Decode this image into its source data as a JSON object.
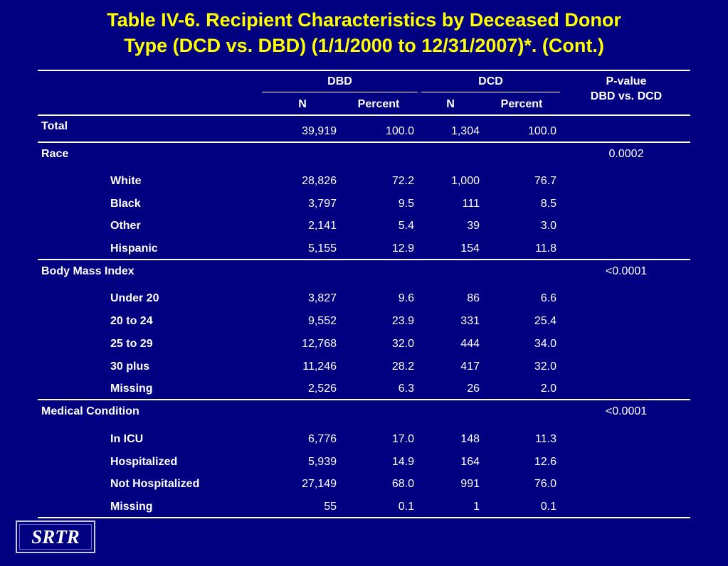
{
  "title": {
    "line1": "Table IV-6. Recipient Characteristics by Deceased Donor",
    "line2": "Type (DCD vs. DBD) (1/1/2000 to 12/31/2007)*. (Cont.)"
  },
  "header": {
    "group_dbd": "DBD",
    "group_dcd": "DCD",
    "col_n": "N",
    "col_percent": "Percent",
    "pvalue_line1": "P-value",
    "pvalue_line2": "DBD vs. DCD"
  },
  "total": {
    "label": "Total",
    "dbd_n": "39,919",
    "dbd_pct": "100.0",
    "dcd_n": "1,304",
    "dcd_pct": "100.0"
  },
  "race": {
    "label": "Race",
    "pvalue": "0.0002",
    "rows": [
      {
        "label": "White",
        "dbd_n": "28,826",
        "dbd_pct": "72.2",
        "dcd_n": "1,000",
        "dcd_pct": "76.7"
      },
      {
        "label": "Black",
        "dbd_n": "3,797",
        "dbd_pct": "9.5",
        "dcd_n": "111",
        "dcd_pct": "8.5"
      },
      {
        "label": "Other",
        "dbd_n": "2,141",
        "dbd_pct": "5.4",
        "dcd_n": "39",
        "dcd_pct": "3.0"
      },
      {
        "label": "Hispanic",
        "dbd_n": "5,155",
        "dbd_pct": "12.9",
        "dcd_n": "154",
        "dcd_pct": "11.8"
      }
    ]
  },
  "bmi": {
    "label": "Body Mass Index",
    "pvalue": "<0.0001",
    "rows": [
      {
        "label": "Under 20",
        "dbd_n": "3,827",
        "dbd_pct": "9.6",
        "dcd_n": "86",
        "dcd_pct": "6.6"
      },
      {
        "label": "20 to 24",
        "dbd_n": "9,552",
        "dbd_pct": "23.9",
        "dcd_n": "331",
        "dcd_pct": "25.4"
      },
      {
        "label": "25 to 29",
        "dbd_n": "12,768",
        "dbd_pct": "32.0",
        "dcd_n": "444",
        "dcd_pct": "34.0"
      },
      {
        "label": "30 plus",
        "dbd_n": "11,246",
        "dbd_pct": "28.2",
        "dcd_n": "417",
        "dcd_pct": "32.0"
      },
      {
        "label": "Missing",
        "dbd_n": "2,526",
        "dbd_pct": "6.3",
        "dcd_n": "26",
        "dcd_pct": "2.0"
      }
    ]
  },
  "medical": {
    "label": "Medical Condition",
    "pvalue": "<0.0001",
    "rows": [
      {
        "label": "In ICU",
        "dbd_n": "6,776",
        "dbd_pct": "17.0",
        "dcd_n": "148",
        "dcd_pct": "11.3"
      },
      {
        "label": "Hospitalized",
        "dbd_n": "5,939",
        "dbd_pct": "14.9",
        "dcd_n": "164",
        "dcd_pct": "12.6"
      },
      {
        "label": "Not Hospitalized",
        "dbd_n": "27,149",
        "dbd_pct": "68.0",
        "dcd_n": "991",
        "dcd_pct": "76.0"
      },
      {
        "label": "Missing",
        "dbd_n": "55",
        "dbd_pct": "0.1",
        "dcd_n": "1",
        "dcd_pct": "0.1"
      }
    ]
  },
  "logo": {
    "text": "SRTR"
  },
  "colors": {
    "background": "#000080",
    "title": "#ffff00",
    "text": "#ffffff"
  }
}
